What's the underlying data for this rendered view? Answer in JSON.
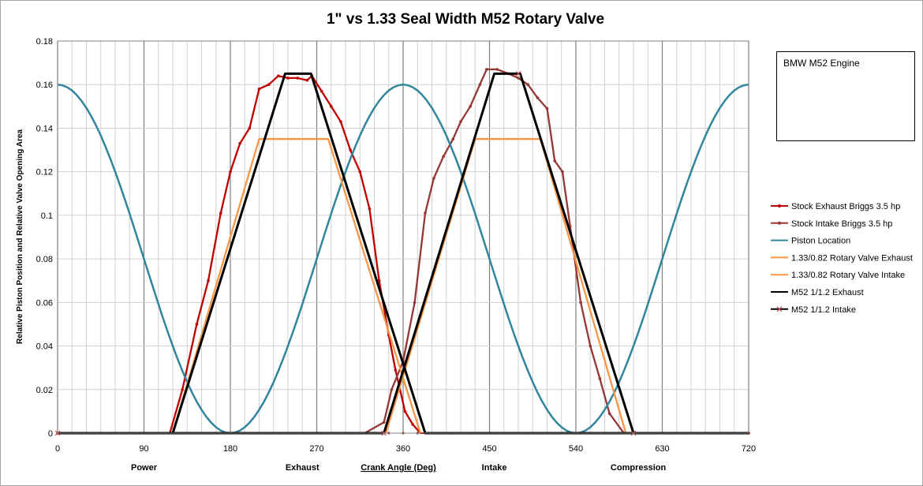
{
  "chart_data": {
    "type": "line",
    "title": "1\" vs 1.33 Seal Width M52 Rotary Valve",
    "xlabel": "Crank Angle (Deg)",
    "ylabel": "Relative Piston Position and Relative Valve Opening Area",
    "xlim": [
      0,
      720
    ],
    "ylim": [
      0,
      0.18
    ],
    "x_ticks": [
      "0",
      "90",
      "180",
      "270",
      "360",
      "450",
      "540",
      "630",
      "720"
    ],
    "y_ticks": [
      "0",
      "0.02",
      "0.04",
      "0.06",
      "0.08",
      "0.1",
      "0.12",
      "0.14",
      "0.16",
      "0.18"
    ],
    "grid": true,
    "legend_position": "right",
    "phase_labels": [
      {
        "label": "Power",
        "x": 90
      },
      {
        "label": "Exhaust",
        "x": 255
      },
      {
        "label": "Intake",
        "x": 455
      },
      {
        "label": "Compression",
        "x": 605
      }
    ],
    "series": [
      {
        "name": "Stock Exhaust  Briggs 3.5 hp",
        "color": "#c00000",
        "marker": "dot",
        "points": [
          [
            0,
            0
          ],
          [
            100,
            0
          ],
          [
            117,
            0
          ],
          [
            130,
            0.02
          ],
          [
            145,
            0.05
          ],
          [
            157,
            0.07
          ],
          [
            170,
            0.101
          ],
          [
            180,
            0.12
          ],
          [
            190,
            0.133
          ],
          [
            200,
            0.14
          ],
          [
            210,
            0.158
          ],
          [
            220,
            0.16
          ],
          [
            230,
            0.164
          ],
          [
            240,
            0.163
          ],
          [
            250,
            0.163
          ],
          [
            260,
            0.162
          ],
          [
            265,
            0.164
          ],
          [
            275,
            0.157
          ],
          [
            285,
            0.15
          ],
          [
            295,
            0.143
          ],
          [
            305,
            0.13
          ],
          [
            315,
            0.12
          ],
          [
            325,
            0.103
          ],
          [
            335,
            0.07
          ],
          [
            345,
            0.045
          ],
          [
            352,
            0.029
          ],
          [
            362,
            0.01
          ],
          [
            370,
            0.004
          ],
          [
            378,
            0
          ],
          [
            400,
            0
          ],
          [
            720,
            0
          ]
        ]
      },
      {
        "name": "Stock Intake  Briggs 3.5 hp",
        "color": "#953735",
        "marker": "dot",
        "points": [
          [
            0,
            0
          ],
          [
            320,
            0
          ],
          [
            340,
            0.005
          ],
          [
            348,
            0.02
          ],
          [
            360,
            0.033
          ],
          [
            372,
            0.06
          ],
          [
            383,
            0.101
          ],
          [
            392,
            0.117
          ],
          [
            402,
            0.127
          ],
          [
            412,
            0.135
          ],
          [
            420,
            0.143
          ],
          [
            430,
            0.15
          ],
          [
            440,
            0.16
          ],
          [
            447,
            0.167
          ],
          [
            458,
            0.167
          ],
          [
            470,
            0.165
          ],
          [
            480,
            0.163
          ],
          [
            490,
            0.16
          ],
          [
            500,
            0.154
          ],
          [
            510,
            0.149
          ],
          [
            518,
            0.125
          ],
          [
            526,
            0.12
          ],
          [
            534,
            0.095
          ],
          [
            545,
            0.06
          ],
          [
            555,
            0.04
          ],
          [
            565,
            0.025
          ],
          [
            575,
            0.009
          ],
          [
            590,
            0
          ],
          [
            720,
            0
          ]
        ]
      },
      {
        "name": "Piston Location",
        "color": "#31859c",
        "marker": "none",
        "function": "piston",
        "amplitude": 0.16
      },
      {
        "name": "1.33/0.82 Rotary Valve  Exhaust",
        "color": "#f79646",
        "marker": "none",
        "points": [
          [
            120,
            0
          ],
          [
            210,
            0.135
          ],
          [
            282,
            0.135
          ],
          [
            378,
            0
          ]
        ]
      },
      {
        "name": "1.33/0.82 Rotary Valve  Intake",
        "color": "#f79646",
        "marker": "none",
        "points": [
          [
            342,
            0
          ],
          [
            435,
            0.135
          ],
          [
            503,
            0.135
          ],
          [
            592,
            0
          ]
        ]
      },
      {
        "name": "M52 1/1.2 Exhaust",
        "color": "#000000",
        "marker": "none",
        "points": [
          [
            0,
            0
          ],
          [
            120,
            0
          ],
          [
            237,
            0.165
          ],
          [
            264,
            0.165
          ],
          [
            383,
            0
          ],
          [
            720,
            0
          ]
        ]
      },
      {
        "name": "M52 1/1.2  Intake",
        "color": "#000000",
        "marker": "x",
        "points": [
          [
            0,
            0
          ],
          [
            340,
            0
          ],
          [
            455,
            0.165
          ],
          [
            482,
            0.165
          ],
          [
            600,
            0
          ],
          [
            720,
            0
          ]
        ]
      }
    ]
  },
  "note_box": {
    "text": "BMW M52 Engine"
  }
}
